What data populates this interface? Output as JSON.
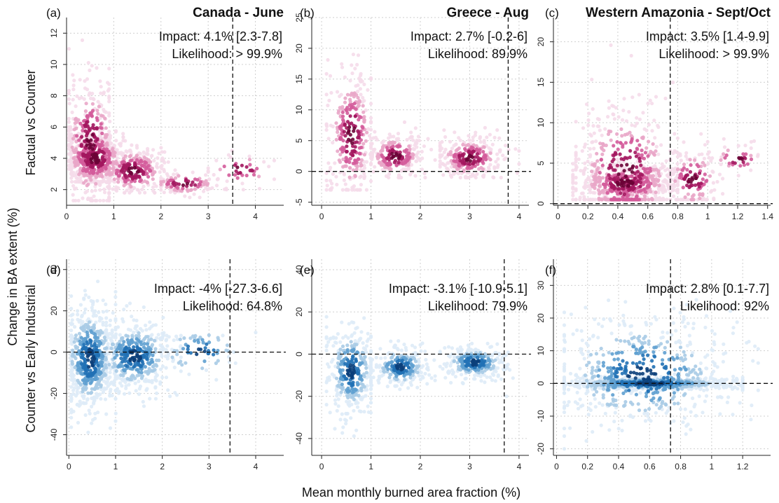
{
  "figure": {
    "ylabel_main": "Change in BA extent (%)",
    "xlabel_main": "Mean monthly burned area fraction (%)",
    "row_labels": [
      "Factual vs Counter",
      "Counter vs Early Industrial"
    ]
  },
  "colors": {
    "row1_scale": [
      "#f5dcea",
      "#e9a6c8",
      "#d45c9b",
      "#a3175f",
      "#6b0236"
    ],
    "row2_scale": [
      "#deebf7",
      "#a8cbe5",
      "#5fa0d0",
      "#2171b5",
      "#0b3f7a"
    ]
  },
  "chart_data": [
    {
      "type": "scatter",
      "panel": "(a)",
      "title": "Canada - June",
      "impact": "Impact: 4.1% [2.3-7.8]",
      "likelihood": "Likelihood: > 99.9%",
      "xlim": [
        0,
        4.6
      ],
      "ylim": [
        1,
        13
      ],
      "xticks": [
        0,
        1,
        2,
        3,
        4
      ],
      "yticks": [
        2,
        4,
        6,
        8,
        10,
        12
      ],
      "vline": 3.52,
      "hline": null,
      "zero_line": false,
      "series": [
        {
          "name": "Factual vs Counter",
          "scale": "row1",
          "clusters": [
            {
              "x": [
                0.05,
                0.9
              ],
              "y": [
                1.3,
                13
              ],
              "n": 320,
              "center": [
                0.5,
                5
              ],
              "spread": [
                0.3,
                2.2
              ]
            },
            {
              "x": [
                0.1,
                1.2
              ],
              "y": [
                2.5,
                8
              ],
              "n": 420,
              "center": [
                0.6,
                4
              ],
              "spread": [
                0.35,
                1.0
              ]
            },
            {
              "x": [
                0.9,
                2.3
              ],
              "y": [
                1.8,
                6.5
              ],
              "n": 300,
              "center": [
                1.4,
                3.2
              ],
              "spread": [
                0.4,
                0.8
              ]
            },
            {
              "x": [
                2.0,
                3.4
              ],
              "y": [
                1.5,
                3.8
              ],
              "n": 90,
              "center": [
                2.5,
                2.4
              ],
              "spread": [
                0.4,
                0.4
              ]
            },
            {
              "x": [
                3.0,
                4.4
              ],
              "y": [
                2.0,
                5.0
              ],
              "n": 45,
              "center": [
                3.7,
                3.3
              ],
              "spread": [
                0.4,
                0.6
              ]
            }
          ]
        }
      ]
    },
    {
      "type": "scatter",
      "panel": "(b)",
      "title": "Greece - Aug",
      "impact": "Impact: 2.7% [-0.2-6]",
      "likelihood": "Likelihood: 89.9%",
      "xlim": [
        -0.2,
        4.2
      ],
      "ylim": [
        -5.5,
        25
      ],
      "xticks": [
        0,
        1,
        2,
        3,
        4
      ],
      "yticks": [
        -5,
        0,
        5,
        10,
        15,
        20,
        25
      ],
      "vline": 3.78,
      "hline": 0,
      "zero_line": true,
      "series": [
        {
          "name": "Factual vs Counter",
          "scale": "row1",
          "clusters": [
            {
              "x": [
                0.1,
                1.0
              ],
              "y": [
                -3,
                24
              ],
              "n": 300,
              "center": [
                0.6,
                6
              ],
              "spread": [
                0.25,
                5.5
              ]
            },
            {
              "x": [
                1.0,
                2.3
              ],
              "y": [
                -1,
                8
              ],
              "n": 220,
              "center": [
                1.5,
                2.5
              ],
              "spread": [
                0.3,
                1.8
              ]
            },
            {
              "x": [
                2.4,
                4.0
              ],
              "y": [
                -1,
                9
              ],
              "n": 260,
              "center": [
                3.0,
                2.2
              ],
              "spread": [
                0.35,
                1.8
              ]
            }
          ]
        }
      ]
    },
    {
      "type": "scatter",
      "panel": "(c)",
      "title": "Western Amazonia - Sept/Oct",
      "impact": "Impact: 3.5% [1.4-9.9]",
      "likelihood": "Likelihood: > 99.9%",
      "xlim": [
        -0.03,
        1.42
      ],
      "ylim": [
        -0.2,
        23
      ],
      "xticks": [
        0.0,
        0.2,
        0.4,
        0.6,
        0.8,
        1.0,
        1.2,
        1.4
      ],
      "yticks": [
        0,
        5,
        10,
        15,
        20
      ],
      "vline": 0.75,
      "hline": 0,
      "zero_line": true,
      "series": [
        {
          "name": "Factual vs Counter",
          "scale": "row1",
          "clusters": [
            {
              "x": [
                0.12,
                0.8
              ],
              "y": [
                0.5,
                22
              ],
              "n": 420,
              "center": [
                0.45,
                4
              ],
              "spread": [
                0.18,
                4.5
              ]
            },
            {
              "x": [
                0.1,
                0.8
              ],
              "y": [
                0.5,
                6
              ],
              "n": 380,
              "center": [
                0.45,
                2.5
              ],
              "spread": [
                0.18,
                1.2
              ]
            },
            {
              "x": [
                0.75,
                1.1
              ],
              "y": [
                0.5,
                10
              ],
              "n": 140,
              "center": [
                0.9,
                3
              ],
              "spread": [
                0.1,
                2.0
              ]
            },
            {
              "x": [
                1.0,
                1.35
              ],
              "y": [
                3,
                8
              ],
              "n": 40,
              "center": [
                1.2,
                5.5
              ],
              "spread": [
                0.1,
                1.0
              ]
            }
          ]
        }
      ]
    },
    {
      "type": "scatter",
      "panel": "(d)",
      "title": "",
      "impact": "Impact: -4% [-27.3-6.6]",
      "likelihood": "Likelihood: 64.8%",
      "xlim": [
        -0.05,
        4.6
      ],
      "ylim": [
        -50,
        45
      ],
      "xticks": [
        0,
        1,
        2,
        3,
        4
      ],
      "yticks": [
        -40,
        -20,
        0,
        20,
        40
      ],
      "vline": 3.45,
      "hline": 0,
      "zero_line": true,
      "series": [
        {
          "name": "Counter vs Early Industrial",
          "scale": "row2",
          "clusters": [
            {
              "x": [
                0.05,
                1.0
              ],
              "y": [
                -48,
                42
              ],
              "n": 560,
              "center": [
                0.45,
                -3
              ],
              "spread": [
                0.3,
                14
              ]
            },
            {
              "x": [
                0.8,
                2.4
              ],
              "y": [
                -30,
                25
              ],
              "n": 420,
              "center": [
                1.4,
                -2
              ],
              "spread": [
                0.45,
                9
              ]
            },
            {
              "x": [
                2.0,
                4.0
              ],
              "y": [
                -20,
                15
              ],
              "n": 70,
              "center": [
                2.8,
                0
              ],
              "spread": [
                0.5,
                7
              ]
            }
          ]
        }
      ]
    },
    {
      "type": "scatter",
      "panel": "(e)",
      "title": "",
      "impact": "Impact: -3.1% [-10.9-5.1]",
      "likelihood": "Likelihood: 79.9%",
      "xlim": [
        -0.2,
        4.2
      ],
      "ylim": [
        -48,
        45
      ],
      "xticks": [
        0,
        1,
        2,
        3,
        4
      ],
      "yticks": [
        -40,
        -20,
        0,
        20,
        40
      ],
      "vline": 3.7,
      "hline": 0,
      "zero_line": true,
      "series": [
        {
          "name": "Counter vs Early Industrial",
          "scale": "row2",
          "clusters": [
            {
              "x": [
                0.1,
                1.0
              ],
              "y": [
                -44,
                28
              ],
              "n": 330,
              "center": [
                0.6,
                -8
              ],
              "spread": [
                0.25,
                11
              ]
            },
            {
              "x": [
                1.0,
                2.3
              ],
              "y": [
                -25,
                8
              ],
              "n": 230,
              "center": [
                1.6,
                -6
              ],
              "spread": [
                0.3,
                5
              ]
            },
            {
              "x": [
                2.4,
                4.0
              ],
              "y": [
                -20,
                5
              ],
              "n": 260,
              "center": [
                3.1,
                -4
              ],
              "spread": [
                0.35,
                4
              ]
            }
          ]
        }
      ]
    },
    {
      "type": "scatter",
      "panel": "(f)",
      "title": "",
      "impact": "Impact: 2.8% [0.1-7.7]",
      "likelihood": "Likelihood: 92%",
      "xlim": [
        -0.02,
        1.38
      ],
      "ylim": [
        -22,
        38
      ],
      "xticks": [
        0.0,
        0.2,
        0.4,
        0.6,
        0.8,
        1.0,
        1.2
      ],
      "yticks": [
        -20,
        -10,
        0,
        10,
        20,
        30
      ],
      "vline": 0.735,
      "hline": 0,
      "zero_line": true,
      "series": [
        {
          "name": "Counter vs Early Industrial",
          "scale": "row2",
          "clusters": [
            {
              "x": [
                0.05,
                1.3
              ],
              "y": [
                -20,
                35
              ],
              "n": 520,
              "center": [
                0.55,
                3
              ],
              "spread": [
                0.3,
                9
              ]
            },
            {
              "x": [
                0.05,
                1.2
              ],
              "y": [
                -3,
                3
              ],
              "n": 640,
              "center": [
                0.6,
                0
              ],
              "spread": [
                0.3,
                1.0
              ]
            }
          ]
        }
      ]
    }
  ]
}
